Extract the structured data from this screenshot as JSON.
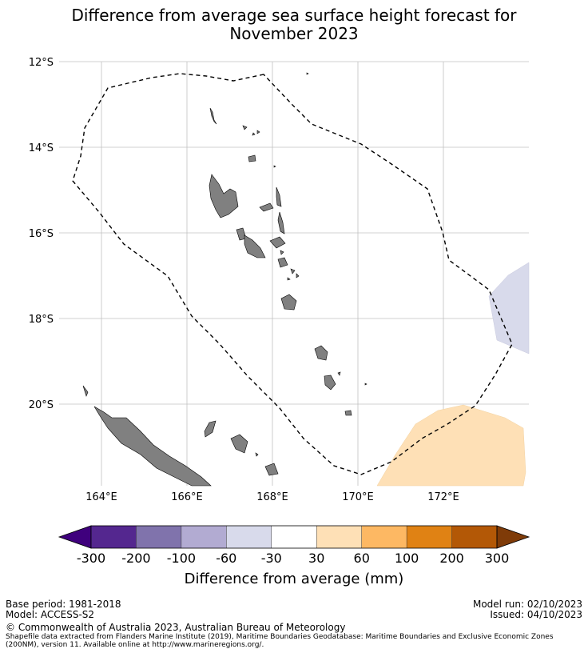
{
  "title": {
    "line1": "Difference from average sea surface height forecast for",
    "line2": "November 2023"
  },
  "map": {
    "lat_labels": [
      "12°S",
      "14°S",
      "16°S",
      "18°S",
      "20°S"
    ],
    "lon_labels": [
      "164°E",
      "166°E",
      "168°E",
      "170°E",
      "172°E"
    ],
    "land_color": "#808080",
    "eez_line": "dashed black"
  },
  "colorbar": {
    "ticks": [
      "-300",
      "-200",
      "-100",
      "-60",
      "-30",
      "30",
      "60",
      "100",
      "200",
      "300"
    ],
    "colors": [
      "#3f007d",
      "#54278f",
      "#8073ac",
      "#b2abd2",
      "#d8daeb",
      "#ffffff",
      "#fee0b6",
      "#fdb863",
      "#e08214",
      "#b35806",
      "#7f3b08"
    ],
    "label": "Difference from average (mm)"
  },
  "footer": {
    "base_period": "Base period: 1981-2018",
    "model": "Model: ACCESS-S2",
    "model_run": "Model run: 02/10/2023",
    "issued": "Issued: 04/10/2023",
    "copyright": "© Commonwealth of Australia 2023, Australian Bureau of Meteorology",
    "shapefile_line1": "Shapefile data extracted from Flanders Marine Institute (2019), Maritime Boundaries Geodatabase: Maritime Boundaries and Exclusive Economic Zones",
    "shapefile_line2": "(200NM), version 11. Available online at http://www.marineregions.org/."
  }
}
